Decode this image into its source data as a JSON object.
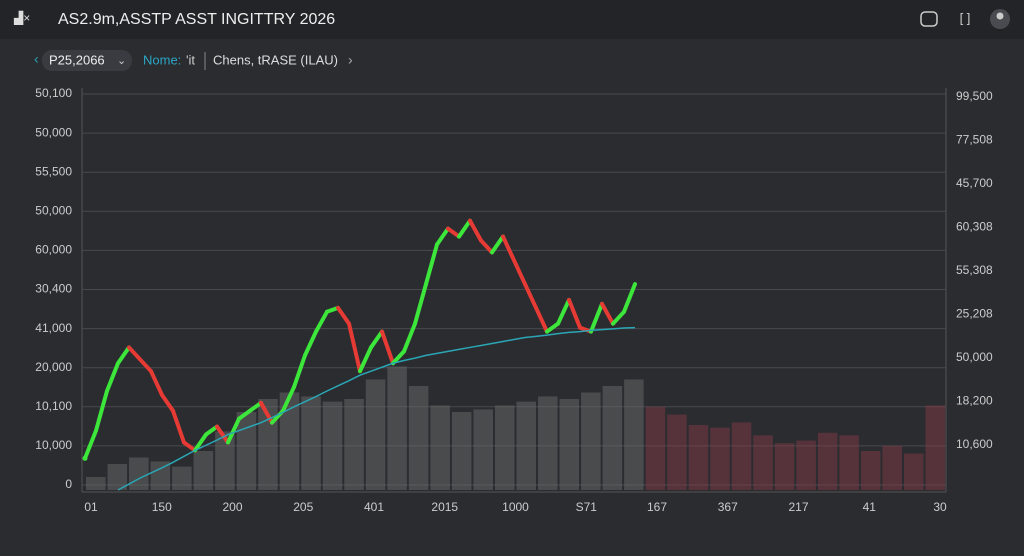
{
  "header": {
    "title": "AS2.9m,ASSTP ASST INGITTRY 2026"
  },
  "toolbar": {
    "symbol": "P25,2066",
    "name_label": "Nome:",
    "name_value": "'it",
    "study": "Chens, tRASE (ILAU)"
  },
  "chart_data": {
    "type": "line",
    "grid": true,
    "ylim": [
      0,
      100
    ],
    "left_labels": [
      "50,100",
      "50,000",
      "55,500",
      "50,000",
      "60,000",
      "30,400",
      "41,000",
      "20,000",
      "10,100",
      "10,000",
      "0"
    ],
    "right_labels": [
      "99,500",
      "77,508",
      "45,700",
      "60,308",
      "55,308",
      "25,208",
      "50,000",
      "18,200",
      "10,600"
    ],
    "x_labels": [
      "01",
      "150",
      "200",
      "205",
      "401",
      "2015",
      "1000",
      "S71",
      "167",
      "367",
      "217",
      "41",
      "30"
    ],
    "price": {
      "up_color": "#3de63a",
      "down_color": "#e63a35",
      "values": [
        8,
        15,
        25,
        32,
        36,
        33,
        30,
        24,
        20,
        12,
        10,
        14,
        16,
        12,
        18,
        20,
        22,
        17,
        20,
        26,
        34,
        40,
        45,
        46,
        42,
        30,
        36,
        40,
        32,
        35,
        42,
        52,
        62,
        66,
        64,
        68,
        63,
        60,
        64,
        58,
        52,
        46,
        40,
        42,
        48,
        41,
        40,
        47,
        42,
        45,
        52
      ]
    },
    "ma": {
      "color": "#2aa6b5",
      "values": [
        null,
        null,
        null,
        0,
        1.5,
        3,
        4.3,
        5.6,
        7,
        8.5,
        10,
        11.3,
        12.6,
        14,
        15,
        16,
        17,
        18.3,
        19.6,
        21,
        22.3,
        23.6,
        25,
        26.3,
        27.6,
        29,
        30,
        31,
        32,
        32.7,
        33.3,
        34,
        34.5,
        35,
        35.5,
        36,
        36.5,
        37,
        37.5,
        38,
        38.5,
        38.8,
        39.1,
        39.5,
        39.8,
        40,
        40.3,
        40.5,
        40.7,
        40.9,
        41
      ]
    },
    "volume": {
      "ylim": [
        0,
        100
      ],
      "series": [
        {
          "color": "#707070",
          "values": [
            10,
            20,
            25,
            22,
            18,
            30,
            45,
            60,
            70,
            75,
            72,
            68,
            70,
            85,
            95,
            80,
            65,
            60,
            62,
            65,
            68,
            72,
            70,
            75,
            80,
            85,
            null,
            null,
            null,
            null,
            null,
            null,
            null,
            null,
            null,
            null,
            null,
            null,
            null,
            null
          ]
        },
        {
          "color": "#8b3b48",
          "values": [
            null,
            null,
            null,
            null,
            null,
            null,
            null,
            null,
            null,
            null,
            null,
            null,
            null,
            null,
            null,
            null,
            null,
            null,
            null,
            null,
            null,
            null,
            null,
            null,
            null,
            null,
            64,
            58,
            50,
            48,
            52,
            42,
            36,
            38,
            44,
            42,
            30,
            34,
            28,
            65
          ]
        }
      ]
    }
  }
}
